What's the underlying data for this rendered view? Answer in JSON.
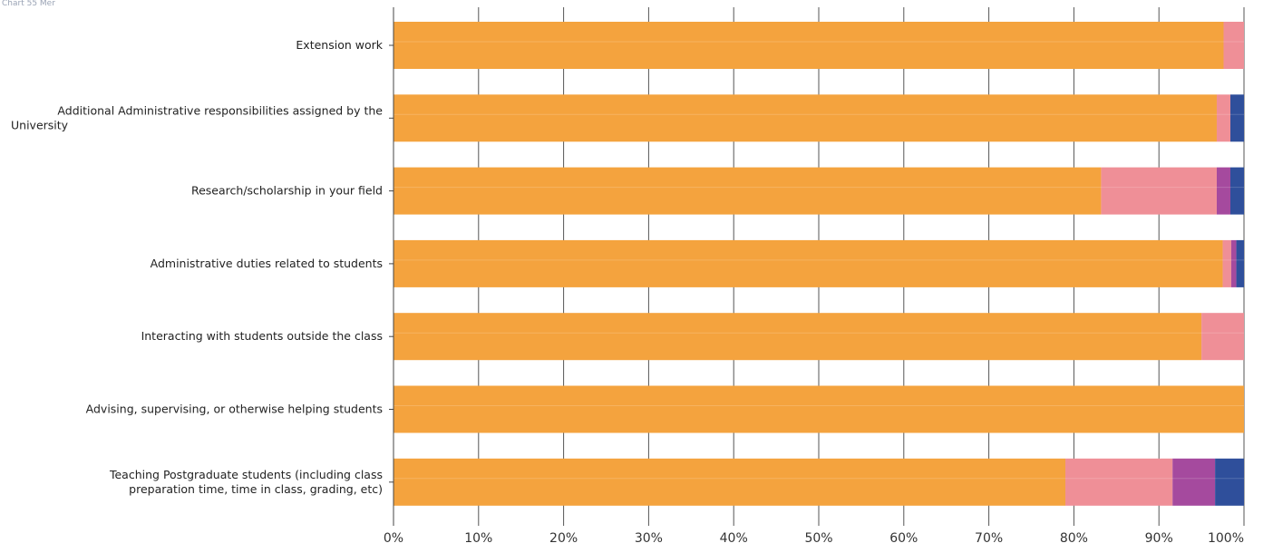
{
  "header": {
    "caption": "Chart 55 Mer"
  },
  "chart_data": {
    "type": "bar",
    "orientation": "horizontal",
    "stacked": true,
    "percent_stacked": true,
    "categories": [
      [
        "Extension work"
      ],
      [
        "Additional Administrative responsibilities assigned by the",
        "University"
      ],
      [
        "Research/scholarship in your field"
      ],
      [
        "Administrative duties related to students"
      ],
      [
        "Interacting with students outside the class"
      ],
      [
        "Advising, supervising, or otherwise helping students"
      ],
      [
        "Teaching Postgraduate students (including class",
        "preparation time, time in class, grading, etc)"
      ]
    ],
    "series": [
      {
        "color": "#f4a33e",
        "values": [
          97.6,
          96.8,
          83.2,
          97.5,
          95.0,
          100.0,
          79.0
        ]
      },
      {
        "color": "#ef8f97",
        "values": [
          2.4,
          1.6,
          13.6,
          1.0,
          5.0,
          0.0,
          12.6
        ]
      },
      {
        "color": "#a54a9e",
        "values": [
          0.0,
          0.0,
          1.6,
          0.6,
          0.0,
          0.0,
          5.0
        ]
      },
      {
        "color": "#2f4f9b",
        "values": [
          0.0,
          1.6,
          1.6,
          0.9,
          0.0,
          0.0,
          3.4
        ]
      }
    ],
    "x_ticks": [
      "0%",
      "10%",
      "20%",
      "30%",
      "40%",
      "50%",
      "60%",
      "70%",
      "80%",
      "90%",
      "100%"
    ],
    "xlim": [
      0,
      100
    ],
    "grid": true,
    "legend": "none"
  }
}
